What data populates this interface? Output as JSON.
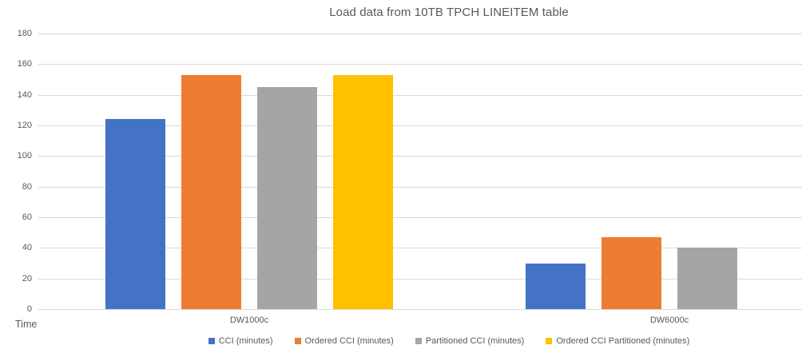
{
  "chart_data": {
    "type": "bar",
    "title": "Load data from 10TB TPCH LINEITEM table",
    "categories": [
      "DW1000c",
      "DW6000c"
    ],
    "series": [
      {
        "name": "CCI (minutes)",
        "color": "#4472C4",
        "values": [
          124,
          30
        ]
      },
      {
        "name": "Ordered CCI (minutes)",
        "color": "#ED7D31",
        "values": [
          153,
          47
        ]
      },
      {
        "name": "Partitioned CCI (minutes)",
        "color": "#A5A5A5",
        "values": [
          145,
          40
        ]
      },
      {
        "name": "Ordered CCI Partitioned (minutes)",
        "color": "#FFC000",
        "values": [
          153,
          null
        ]
      }
    ],
    "xlabel": "",
    "ylabel": "Time",
    "ylim": [
      0,
      180
    ],
    "yticks": [
      0,
      20,
      40,
      60,
      80,
      100,
      120,
      140,
      160,
      180
    ],
    "grid": true,
    "legend_position": "bottom",
    "gridline_color": "#D9D9D9",
    "text_color": "#595959"
  }
}
